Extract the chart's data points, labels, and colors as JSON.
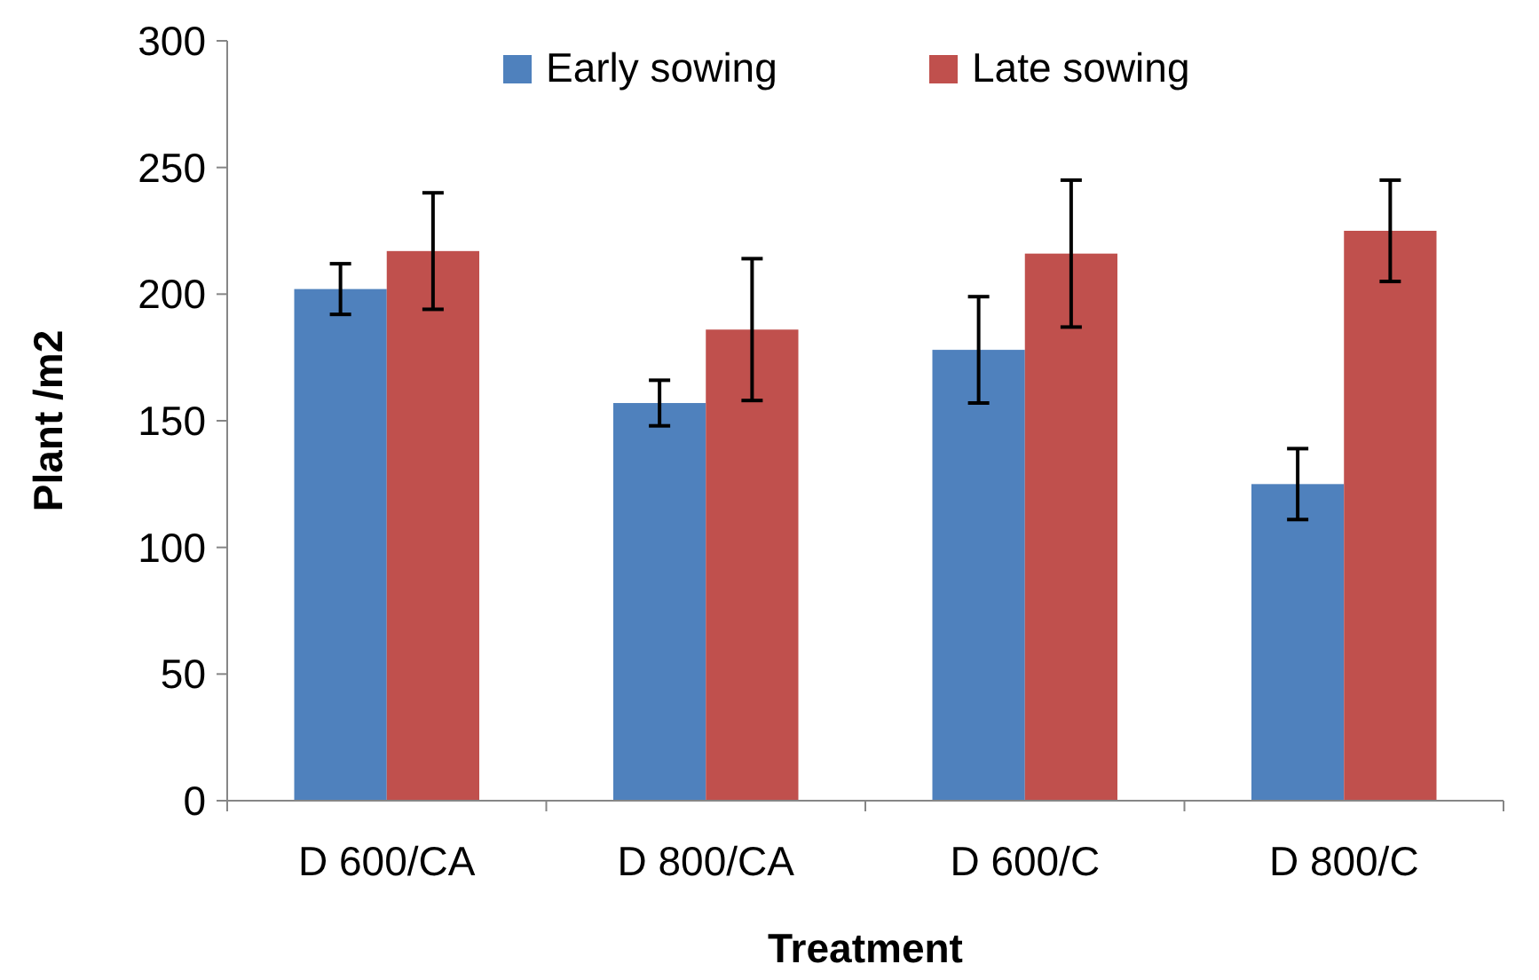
{
  "chart_data": {
    "type": "bar",
    "xlabel": "Treatment",
    "ylabel": "Plant /m2",
    "categories": [
      "D 600/CA",
      "D 800/CA",
      "D 600/C",
      "D 800/C"
    ],
    "series": [
      {
        "name": "Early sowing",
        "color": "#4f81bd",
        "values": [
          202,
          157,
          178,
          125
        ],
        "errors": [
          10,
          9,
          21,
          14
        ]
      },
      {
        "name": "Late sowing",
        "color": "#c0504d",
        "values": [
          217,
          186,
          216,
          225
        ],
        "errors": [
          23,
          28,
          29,
          20
        ]
      }
    ],
    "ylim": [
      0,
      300
    ],
    "yticks": [
      0,
      50,
      100,
      150,
      200,
      250,
      300
    ],
    "legend": "top"
  }
}
